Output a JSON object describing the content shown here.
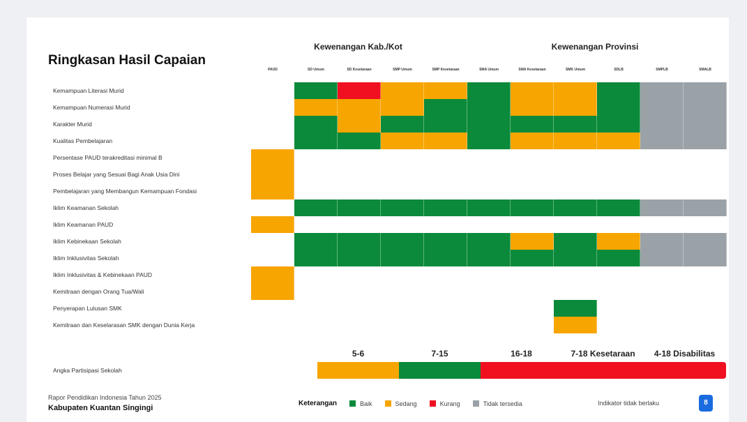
{
  "colors": {
    "Baik": "#0a8a3a",
    "Sedang": "#f7a500",
    "Kurang": "#f01020",
    "Tidak tersedia": "#9aa2a8"
  },
  "chart_data": {
    "type": "heatmap",
    "title": "Ringkasan Hasil Capaian",
    "groups": [
      {
        "label": "Kewenangan Kab./Kot"
      },
      {
        "label": "Kewenangan Provinsi"
      }
    ],
    "columns": [
      "PAUD",
      "SD Umum",
      "SD Kesetaraan",
      "SMP Umum",
      "SMP Kesetaraan",
      "SMA Umum",
      "SMA Kesetaraan",
      "SMK Umum",
      "SDLB",
      "SMPLB",
      "SMALB"
    ],
    "rows": [
      {
        "label": "Kemampuan Literasi Murid",
        "values": [
          "",
          "B",
          "K",
          "S",
          "S",
          "B",
          "S",
          "S",
          "B",
          "T",
          "T"
        ]
      },
      {
        "label": "Kemampuan Numerasi Murid",
        "values": [
          "",
          "S",
          "S",
          "S",
          "B",
          "B",
          "S",
          "S",
          "B",
          "T",
          "T"
        ]
      },
      {
        "label": "Karakter Murid",
        "values": [
          "",
          "B",
          "S",
          "B",
          "B",
          "B",
          "B",
          "B",
          "B",
          "T",
          "T"
        ]
      },
      {
        "label": "Kualitas Pembelajaran",
        "values": [
          "",
          "B",
          "B",
          "S",
          "S",
          "B",
          "S",
          "S",
          "S",
          "T",
          "T"
        ]
      },
      {
        "label": "Persentase PAUD terakreditasi minimal B",
        "values": [
          "S",
          "",
          "",
          "",
          "",
          "",
          "",
          "",
          "",
          "",
          ""
        ]
      },
      {
        "label": "Proses Belajar yang Sesuai Bagi Anak Usia Dini",
        "values": [
          "S",
          "",
          "",
          "",
          "",
          "",
          "",
          "",
          "",
          "",
          ""
        ]
      },
      {
        "label": "Pembelajaran yang Membangun Kemampuan Fondasi",
        "values": [
          "S",
          "",
          "",
          "",
          "",
          "",
          "",
          "",
          "",
          "",
          ""
        ]
      },
      {
        "label": "Iklim Keamanan Sekolah",
        "values": [
          "",
          "B",
          "B",
          "B",
          "B",
          "B",
          "B",
          "B",
          "B",
          "T",
          "T"
        ]
      },
      {
        "label": "Iklim Keamanan PAUD",
        "values": [
          "S",
          "",
          "",
          "",
          "",
          "",
          "",
          "",
          "",
          "",
          ""
        ]
      },
      {
        "label": "Iklim Kebinekaan Sekolah",
        "values": [
          "",
          "B",
          "B",
          "B",
          "B",
          "B",
          "S",
          "B",
          "S",
          "T",
          "T"
        ]
      },
      {
        "label": "Iklim Inklusivitas Sekolah",
        "values": [
          "",
          "B",
          "B",
          "B",
          "B",
          "B",
          "B",
          "B",
          "B",
          "T",
          "T"
        ]
      },
      {
        "label": "Iklim Inklusivitas & Kebinekaan PAUD",
        "values": [
          "S",
          "",
          "",
          "",
          "",
          "",
          "",
          "",
          "",
          "",
          ""
        ]
      },
      {
        "label": "Kemitraan dengan Orang Tua/Wali",
        "values": [
          "S",
          "",
          "",
          "",
          "",
          "",
          "",
          "",
          "",
          "",
          ""
        ]
      },
      {
        "label": "Penyerapan Lulusan SMK",
        "values": [
          "",
          "",
          "",
          "",
          "",
          "",
          "",
          "B",
          "",
          "",
          ""
        ]
      },
      {
        "label": "Kemitraan dan Keselarasan SMK dengan Dunia Kerja",
        "values": [
          "",
          "",
          "",
          "",
          "",
          "",
          "",
          "S",
          "",
          "",
          ""
        ]
      }
    ],
    "value_codes": {
      "B": "Baik",
      "S": "Sedang",
      "K": "Kurang",
      "T": "Tidak tersedia"
    },
    "aps": {
      "label": "Angka Partisipasi Sekolah",
      "segments": [
        {
          "label": "5-6",
          "value": "S"
        },
        {
          "label": "7-15",
          "value": "B"
        },
        {
          "label": "16-18",
          "value": "K"
        },
        {
          "label": "7-18 Kesetaraan",
          "value": "K"
        },
        {
          "label": "4-18 Disabilitas",
          "value": "K"
        }
      ]
    }
  },
  "footer": {
    "report": "Rapor Pendidikan Indonesia Tahun 2025",
    "region": "Kabupaten Kuantan Singingi"
  },
  "legend": {
    "title": "Keterangan",
    "items": [
      "Baik",
      "Sedang",
      "Kurang",
      "Tidak tersedia"
    ],
    "na": "Indikator tidak berlaku",
    "badge": "8"
  }
}
